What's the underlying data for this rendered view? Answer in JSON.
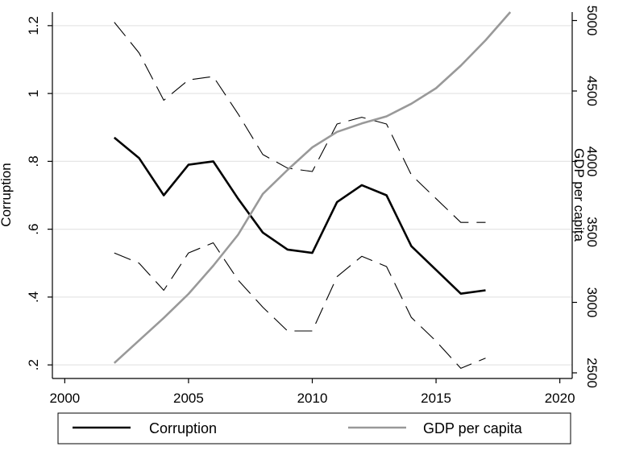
{
  "chart_data": {
    "type": "line",
    "title": "",
    "xlabel": "",
    "ylabel_left": "Corruption",
    "ylabel_right": "GDP per capita",
    "xlim": [
      1999.5,
      2020.5
    ],
    "ylim_left": [
      0.16,
      1.24
    ],
    "ylim_right": [
      2460,
      5060
    ],
    "x_ticks": [
      2000,
      2005,
      2010,
      2015,
      2020
    ],
    "y_left_ticks": [
      0.2,
      0.4,
      0.6,
      0.8,
      1.0,
      1.2
    ],
    "y_left_tick_labels": [
      ".2",
      ".4",
      ".6",
      ".8",
      "1",
      "1.2"
    ],
    "y_right_ticks": [
      2500,
      3000,
      3500,
      4000,
      4500,
      5000
    ],
    "grid": "horizontal",
    "legend_position": "bottom",
    "series": [
      {
        "name": "Corruption",
        "axis": "left",
        "color": "#000000",
        "style": "solid",
        "x": [
          2002,
          2003,
          2004,
          2005,
          2006,
          2007,
          2008,
          2009,
          2010,
          2011,
          2012,
          2013,
          2014,
          2015,
          2016,
          2017
        ],
        "values": [
          0.87,
          0.81,
          0.7,
          0.79,
          0.8,
          0.69,
          0.59,
          0.54,
          0.53,
          0.68,
          0.73,
          0.7,
          0.55,
          0.48,
          0.41,
          0.42
        ]
      },
      {
        "axis": "left",
        "color": "#000000",
        "style": "dashed",
        "x": [
          2002,
          2003,
          2004,
          2005,
          2006,
          2007,
          2008,
          2009,
          2010,
          2011,
          2012,
          2013,
          2014,
          2015,
          2016,
          2017
        ],
        "values": [
          1.21,
          1.12,
          0.98,
          1.04,
          1.05,
          0.94,
          0.82,
          0.78,
          0.77,
          0.91,
          0.93,
          0.91,
          0.76,
          0.69,
          0.62,
          0.62
        ]
      },
      {
        "axis": "left",
        "color": "#000000",
        "style": "dashed",
        "x": [
          2002,
          2003,
          2004,
          2005,
          2006,
          2007,
          2008,
          2009,
          2010,
          2011,
          2012,
          2013,
          2014,
          2015,
          2016,
          2017
        ],
        "values": [
          0.53,
          0.5,
          0.42,
          0.53,
          0.56,
          0.45,
          0.37,
          0.3,
          0.3,
          0.46,
          0.52,
          0.49,
          0.34,
          0.27,
          0.19,
          0.22
        ]
      },
      {
        "name": "GDP per capita",
        "axis": "right",
        "color": "#999999",
        "style": "solid",
        "x": [
          2002,
          2003,
          2004,
          2005,
          2006,
          2007,
          2008,
          2009,
          2010,
          2011,
          2012,
          2013,
          2014,
          2015,
          2016,
          2017,
          2018
        ],
        "values": [
          2570,
          2730,
          2890,
          3060,
          3260,
          3480,
          3770,
          3940,
          4100,
          4210,
          4270,
          4320,
          4410,
          4520,
          4680,
          4860,
          5060
        ]
      }
    ]
  },
  "legend": {
    "items": [
      {
        "label": "Corruption",
        "color": "#000000"
      },
      {
        "label": "GDP per capita",
        "color": "#999999"
      }
    ]
  }
}
